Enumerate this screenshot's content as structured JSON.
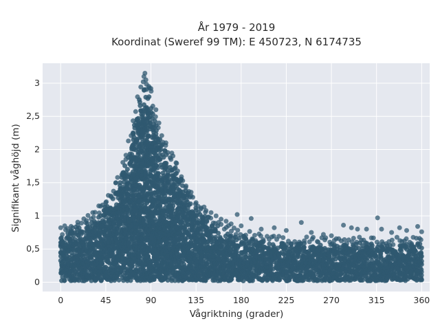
{
  "chart_data": {
    "type": "scatter",
    "title": "År 1979 - 2019",
    "subtitle": "Koordinat (Sweref 99 TM): E 450723, N 6174735",
    "xlabel": "Vågriktning (grader)",
    "ylabel": "Signifikant våghöjd (m)",
    "xlim": [
      -18,
      368
    ],
    "ylim": [
      -0.14,
      3.3
    ],
    "x_ticks": [
      0,
      45,
      90,
      135,
      180,
      225,
      270,
      315,
      360
    ],
    "x_tick_labels": [
      "0",
      "45",
      "90",
      "135",
      "180",
      "225",
      "270",
      "315",
      "360"
    ],
    "y_ticks": [
      0,
      0.5,
      1,
      1.5,
      2,
      2.5,
      3
    ],
    "y_tick_labels": [
      "0",
      "0,5",
      "1",
      "1,5",
      "2",
      "2,5",
      "3"
    ],
    "grid": true,
    "legend": "none",
    "marker_color": "#2f5870",
    "plot_background": "#e5e8ef",
    "grid_color": "#ffffff",
    "envelope": {
      "description_x": [
        0,
        10,
        20,
        30,
        40,
        50,
        60,
        70,
        75,
        80,
        83,
        85,
        88,
        90,
        95,
        100,
        110,
        120,
        130,
        140,
        150,
        160,
        170,
        180,
        200,
        225,
        250,
        270,
        300,
        330,
        360
      ],
      "upper_y": [
        0.7,
        0.8,
        0.85,
        0.95,
        1.1,
        1.3,
        1.6,
        2.2,
        2.6,
        2.9,
        3.0,
        3.0,
        2.9,
        2.8,
        2.5,
        2.2,
        1.9,
        1.6,
        1.3,
        1.1,
        0.95,
        0.85,
        0.75,
        0.7,
        0.65,
        0.6,
        0.6,
        0.6,
        0.6,
        0.6,
        0.6
      ],
      "lower_y": [
        0.02,
        0.02,
        0.02,
        0.02,
        0.02,
        0.02,
        0.02,
        0.02,
        0.02,
        0.02,
        0.02,
        0.02,
        0.02,
        0.02,
        0.02,
        0.02,
        0.02,
        0.02,
        0.02,
        0.02,
        0.02,
        0.02,
        0.02,
        0.02,
        0.02,
        0.02,
        0.02,
        0.02,
        0.02,
        0.02,
        0.02
      ]
    },
    "outliers": [
      {
        "x": 84,
        "y": 3.15
      },
      {
        "x": 83,
        "y": 3.1
      },
      {
        "x": 85,
        "y": 3.05
      },
      {
        "x": 88,
        "y": 2.95
      },
      {
        "x": 90,
        "y": 2.92
      },
      {
        "x": 75,
        "y": 2.4
      },
      {
        "x": 72,
        "y": 2.25
      },
      {
        "x": 95,
        "y": 2.6
      },
      {
        "x": 98,
        "y": 2.4
      },
      {
        "x": 65,
        "y": 1.85
      },
      {
        "x": 62,
        "y": 1.65
      },
      {
        "x": 55,
        "y": 1.5
      },
      {
        "x": 50,
        "y": 1.3
      },
      {
        "x": 45,
        "y": 1.2
      },
      {
        "x": 38,
        "y": 1.15
      },
      {
        "x": 32,
        "y": 1.05
      },
      {
        "x": 25,
        "y": 0.9
      },
      {
        "x": 17,
        "y": 0.86
      },
      {
        "x": 10,
        "y": 0.78
      },
      {
        "x": 4,
        "y": 0.85
      },
      {
        "x": 0,
        "y": 0.82
      },
      {
        "x": 105,
        "y": 2.1
      },
      {
        "x": 110,
        "y": 1.85
      },
      {
        "x": 115,
        "y": 1.8
      },
      {
        "x": 120,
        "y": 1.55
      },
      {
        "x": 125,
        "y": 1.45
      },
      {
        "x": 130,
        "y": 1.3
      },
      {
        "x": 135,
        "y": 1.2
      },
      {
        "x": 140,
        "y": 1.12
      },
      {
        "x": 145,
        "y": 1.08
      },
      {
        "x": 150,
        "y": 1.05
      },
      {
        "x": 155,
        "y": 1.0
      },
      {
        "x": 160,
        "y": 0.95
      },
      {
        "x": 165,
        "y": 0.92
      },
      {
        "x": 170,
        "y": 0.88
      },
      {
        "x": 176,
        "y": 1.02
      },
      {
        "x": 180,
        "y": 0.85
      },
      {
        "x": 190,
        "y": 0.96
      },
      {
        "x": 200,
        "y": 0.8
      },
      {
        "x": 213,
        "y": 0.82
      },
      {
        "x": 225,
        "y": 0.78
      },
      {
        "x": 240,
        "y": 0.9
      },
      {
        "x": 250,
        "y": 0.75
      },
      {
        "x": 262,
        "y": 0.72
      },
      {
        "x": 270,
        "y": 0.7
      },
      {
        "x": 282,
        "y": 0.86
      },
      {
        "x": 290,
        "y": 0.82
      },
      {
        "x": 296,
        "y": 0.8
      },
      {
        "x": 305,
        "y": 0.8
      },
      {
        "x": 316,
        "y": 0.97
      },
      {
        "x": 320,
        "y": 0.8
      },
      {
        "x": 330,
        "y": 0.75
      },
      {
        "x": 338,
        "y": 0.82
      },
      {
        "x": 345,
        "y": 0.78
      },
      {
        "x": 356,
        "y": 0.84
      },
      {
        "x": 360,
        "y": 0.76
      }
    ]
  }
}
